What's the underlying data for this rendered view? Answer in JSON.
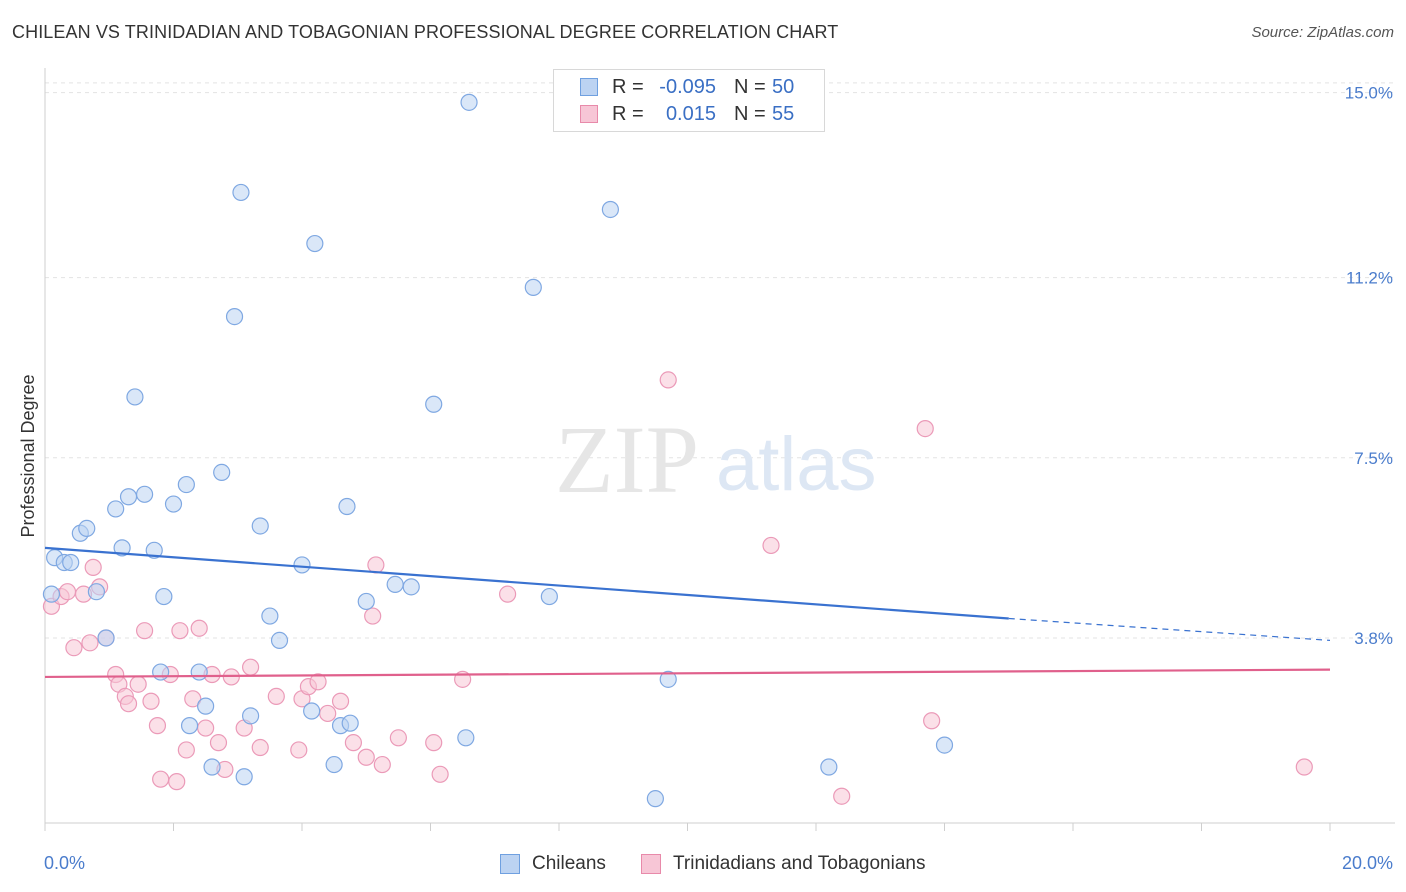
{
  "title": "CHILEAN VS TRINIDADIAN AND TOBAGONIAN PROFESSIONAL DEGREE CORRELATION CHART",
  "source": "Source: ZipAtlas.com",
  "watermark": {
    "zip": "ZIP",
    "atlas": "atlas"
  },
  "legend": [
    {
      "r_label": "R =",
      "r_value": "-0.095",
      "n_label": "N =",
      "n_value": "50",
      "color": "#6fa0e0",
      "fill": "#bcd3f2"
    },
    {
      "r_label": "R =",
      "r_value": "0.015",
      "n_label": "N =",
      "n_value": "55",
      "color": "#e88aaa",
      "fill": "#f7c6d6"
    }
  ],
  "bottom_legend": [
    "Chileans",
    "Trinidadians and Tobagonians"
  ],
  "chart_data": {
    "type": "scatter",
    "title": "CHILEAN VS TRINIDADIAN AND TOBAGONIAN PROFESSIONAL DEGREE CORRELATION CHART",
    "ylabel": "Professional Degree",
    "xlabel": "",
    "xlim": [
      0,
      20
    ],
    "ylim": [
      0,
      15.3
    ],
    "x_tick_labels": [
      "0.0%",
      "20.0%"
    ],
    "y_ticks": [
      3.8,
      7.5,
      11.2,
      15.0
    ],
    "y_tick_labels": [
      "3.8%",
      "7.5%",
      "11.2%",
      "15.0%"
    ],
    "grid": true,
    "series": [
      {
        "name": "Chileans",
        "color": "#3a72d0",
        "fill": "#bcd3f2",
        "stroke": "#7fa8e2",
        "trend": {
          "x0": 0,
          "y0": 5.65,
          "x1": 15.0,
          "y1": 4.2,
          "dash_to_x": 20.0,
          "dash_y": 3.75
        },
        "points": [
          [
            0.1,
            4.7
          ],
          [
            0.15,
            5.45
          ],
          [
            0.3,
            5.35
          ],
          [
            0.4,
            5.35
          ],
          [
            0.55,
            5.95
          ],
          [
            0.65,
            6.05
          ],
          [
            0.8,
            4.75
          ],
          [
            0.95,
            3.8
          ],
          [
            1.1,
            6.45
          ],
          [
            1.2,
            5.65
          ],
          [
            1.3,
            6.7
          ],
          [
            1.4,
            8.75
          ],
          [
            1.55,
            6.75
          ],
          [
            1.7,
            5.6
          ],
          [
            1.85,
            4.65
          ],
          [
            1.8,
            3.1
          ],
          [
            2.0,
            6.55
          ],
          [
            2.2,
            6.95
          ],
          [
            2.25,
            2.0
          ],
          [
            2.4,
            3.1
          ],
          [
            2.5,
            2.4
          ],
          [
            2.6,
            1.15
          ],
          [
            2.75,
            7.2
          ],
          [
            2.95,
            10.4
          ],
          [
            3.1,
            0.95
          ],
          [
            3.05,
            12.95
          ],
          [
            3.2,
            2.2
          ],
          [
            3.35,
            6.1
          ],
          [
            3.5,
            4.25
          ],
          [
            3.65,
            3.75
          ],
          [
            4.0,
            5.3
          ],
          [
            4.15,
            2.3
          ],
          [
            4.2,
            11.9
          ],
          [
            4.5,
            1.2
          ],
          [
            4.6,
            2.0
          ],
          [
            4.75,
            2.05
          ],
          [
            4.7,
            6.5
          ],
          [
            5.0,
            4.55
          ],
          [
            5.45,
            4.9
          ],
          [
            5.7,
            4.85
          ],
          [
            6.05,
            8.6
          ],
          [
            6.55,
            1.75
          ],
          [
            6.6,
            14.8
          ],
          [
            7.6,
            11.0
          ],
          [
            7.85,
            4.65
          ],
          [
            8.8,
            12.6
          ],
          [
            9.5,
            0.5
          ],
          [
            9.7,
            2.95
          ],
          [
            12.2,
            1.15
          ],
          [
            14.0,
            1.6
          ]
        ]
      },
      {
        "name": "Trinidadians and Tobagonians",
        "color": "#e0608c",
        "fill": "#f7c6d6",
        "stroke": "#eb9ab8",
        "trend": {
          "x0": 0,
          "y0": 3.0,
          "x1": 20.0,
          "y1": 3.15
        },
        "points": [
          [
            0.1,
            4.45
          ],
          [
            0.25,
            4.65
          ],
          [
            0.35,
            4.75
          ],
          [
            0.45,
            3.6
          ],
          [
            0.6,
            4.7
          ],
          [
            0.7,
            3.7
          ],
          [
            0.75,
            5.25
          ],
          [
            0.85,
            4.85
          ],
          [
            0.95,
            3.8
          ],
          [
            1.1,
            3.05
          ],
          [
            1.15,
            2.85
          ],
          [
            1.25,
            2.6
          ],
          [
            1.3,
            2.45
          ],
          [
            1.45,
            2.85
          ],
          [
            1.55,
            3.95
          ],
          [
            1.65,
            2.5
          ],
          [
            1.75,
            2.0
          ],
          [
            1.8,
            0.9
          ],
          [
            1.95,
            3.05
          ],
          [
            2.05,
            0.85
          ],
          [
            2.1,
            3.95
          ],
          [
            2.2,
            1.5
          ],
          [
            2.3,
            2.55
          ],
          [
            2.4,
            4.0
          ],
          [
            2.5,
            1.95
          ],
          [
            2.6,
            3.05
          ],
          [
            2.7,
            1.65
          ],
          [
            2.8,
            1.1
          ],
          [
            2.9,
            3.0
          ],
          [
            3.1,
            1.95
          ],
          [
            3.2,
            3.2
          ],
          [
            3.35,
            1.55
          ],
          [
            3.6,
            2.6
          ],
          [
            3.95,
            1.5
          ],
          [
            4.0,
            2.55
          ],
          [
            4.1,
            2.8
          ],
          [
            4.25,
            2.9
          ],
          [
            4.4,
            2.25
          ],
          [
            4.6,
            2.5
          ],
          [
            4.8,
            1.65
          ],
          [
            5.0,
            1.35
          ],
          [
            5.1,
            4.25
          ],
          [
            5.15,
            5.3
          ],
          [
            5.25,
            1.2
          ],
          [
            5.5,
            1.75
          ],
          [
            6.05,
            1.65
          ],
          [
            6.15,
            1.0
          ],
          [
            6.5,
            2.95
          ],
          [
            7.2,
            4.7
          ],
          [
            9.7,
            9.1
          ],
          [
            11.3,
            5.7
          ],
          [
            12.4,
            0.55
          ],
          [
            13.7,
            8.1
          ],
          [
            13.8,
            2.1
          ],
          [
            19.6,
            1.15
          ]
        ]
      }
    ]
  }
}
